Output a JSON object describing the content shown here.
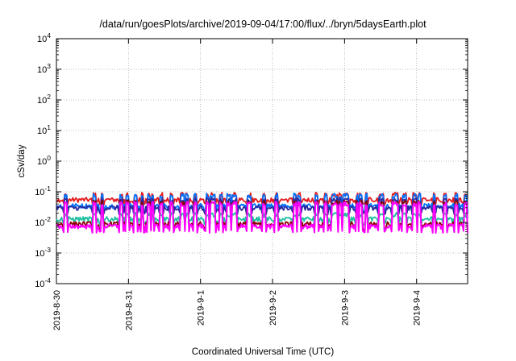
{
  "chart_data": {
    "type": "line",
    "title": "/data/run/goesPlots/archive/2019-09-04/17:00/flux/../bryn/5daysEarth.plot",
    "xlabel": "Coordinated Universal Time (UTC)",
    "ylabel": "cSv/day",
    "yscale": "log",
    "ylim": [
      0.0001,
      10000
    ],
    "y_ticks": [
      {
        "base": "10",
        "exp": "-4"
      },
      {
        "base": "10",
        "exp": "-3"
      },
      {
        "base": "10",
        "exp": "-2"
      },
      {
        "base": "10",
        "exp": "-1"
      },
      {
        "base": "10",
        "exp": "0"
      },
      {
        "base": "10",
        "exp": "1"
      },
      {
        "base": "10",
        "exp": "2"
      },
      {
        "base": "10",
        "exp": "3"
      },
      {
        "base": "10",
        "exp": "4"
      }
    ],
    "x_range_days": [
      "2019-08-30T00:00",
      "2019-09-04T17:00"
    ],
    "x_ticks": [
      "2019-8-30",
      "2019-8-31",
      "2019-9-1",
      "2019-9-2",
      "2019-9-3",
      "2019-9-4"
    ],
    "grid": true,
    "series": [
      {
        "color": "#e41a1c",
        "baseline": 0.055,
        "spike": 0.09,
        "dip": 0.04
      },
      {
        "color": "#0072ff",
        "baseline": 0.035,
        "spike": 0.085,
        "dip": 0.022
      },
      {
        "color": "#2a2aa0",
        "baseline": 0.03,
        "spike": 0.06,
        "dip": 0.02
      },
      {
        "color": "#20c0a0",
        "baseline": 0.013,
        "spike": 0.02,
        "dip": 0.009
      },
      {
        "color": "#8b0000",
        "baseline": 0.009,
        "spike": 0.05,
        "dip": 0.006
      },
      {
        "color": "#ff00ff",
        "baseline": 0.0075,
        "spike": 0.045,
        "dip": 0.005
      }
    ]
  }
}
